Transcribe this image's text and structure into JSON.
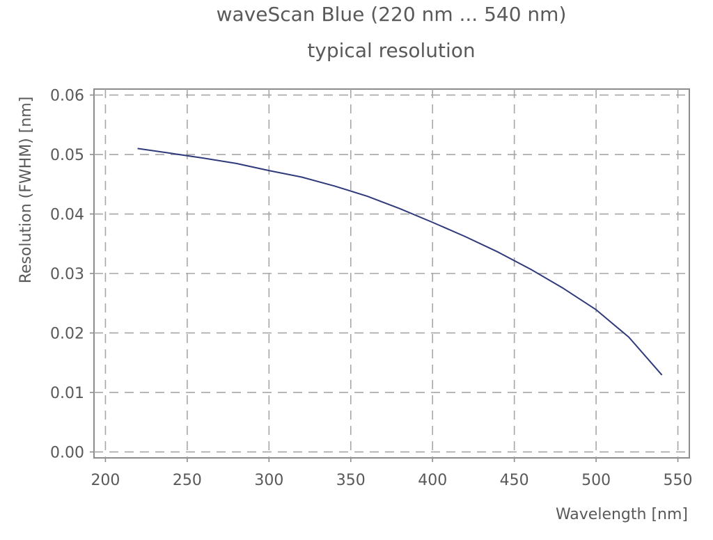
{
  "chart_data": {
    "type": "line",
    "title": "waveScan Blue (220 nm ... 540 nm)",
    "subtitle": "typical resolution",
    "xlabel": "Wavelength [nm]",
    "ylabel": "Resolution (FWHM) [nm]",
    "xlim": [
      193,
      557
    ],
    "ylim": [
      -0.001,
      0.061
    ],
    "xticks": [
      200,
      250,
      300,
      350,
      400,
      450,
      500,
      550
    ],
    "yticks": [
      0.0,
      0.01,
      0.02,
      0.03,
      0.04,
      0.05,
      0.06
    ],
    "xtick_labels": [
      "200",
      "250",
      "300",
      "350",
      "400",
      "450",
      "500",
      "550"
    ],
    "ytick_labels": [
      "0.00",
      "0.01",
      "0.02",
      "0.03",
      "0.04",
      "0.05",
      "0.06"
    ],
    "grid": true,
    "line_color": "#2e3a7a",
    "series": [
      {
        "x": [
          220,
          240,
          260,
          280,
          300,
          320,
          340,
          360,
          380,
          400,
          420,
          440,
          460,
          480,
          500,
          520,
          540
        ],
        "values": [
          0.051,
          0.0502,
          0.0494,
          0.0485,
          0.0473,
          0.0462,
          0.0447,
          0.043,
          0.0409,
          0.0386,
          0.0362,
          0.0336,
          0.0307,
          0.0275,
          0.0239,
          0.0193,
          0.013
        ]
      }
    ]
  }
}
